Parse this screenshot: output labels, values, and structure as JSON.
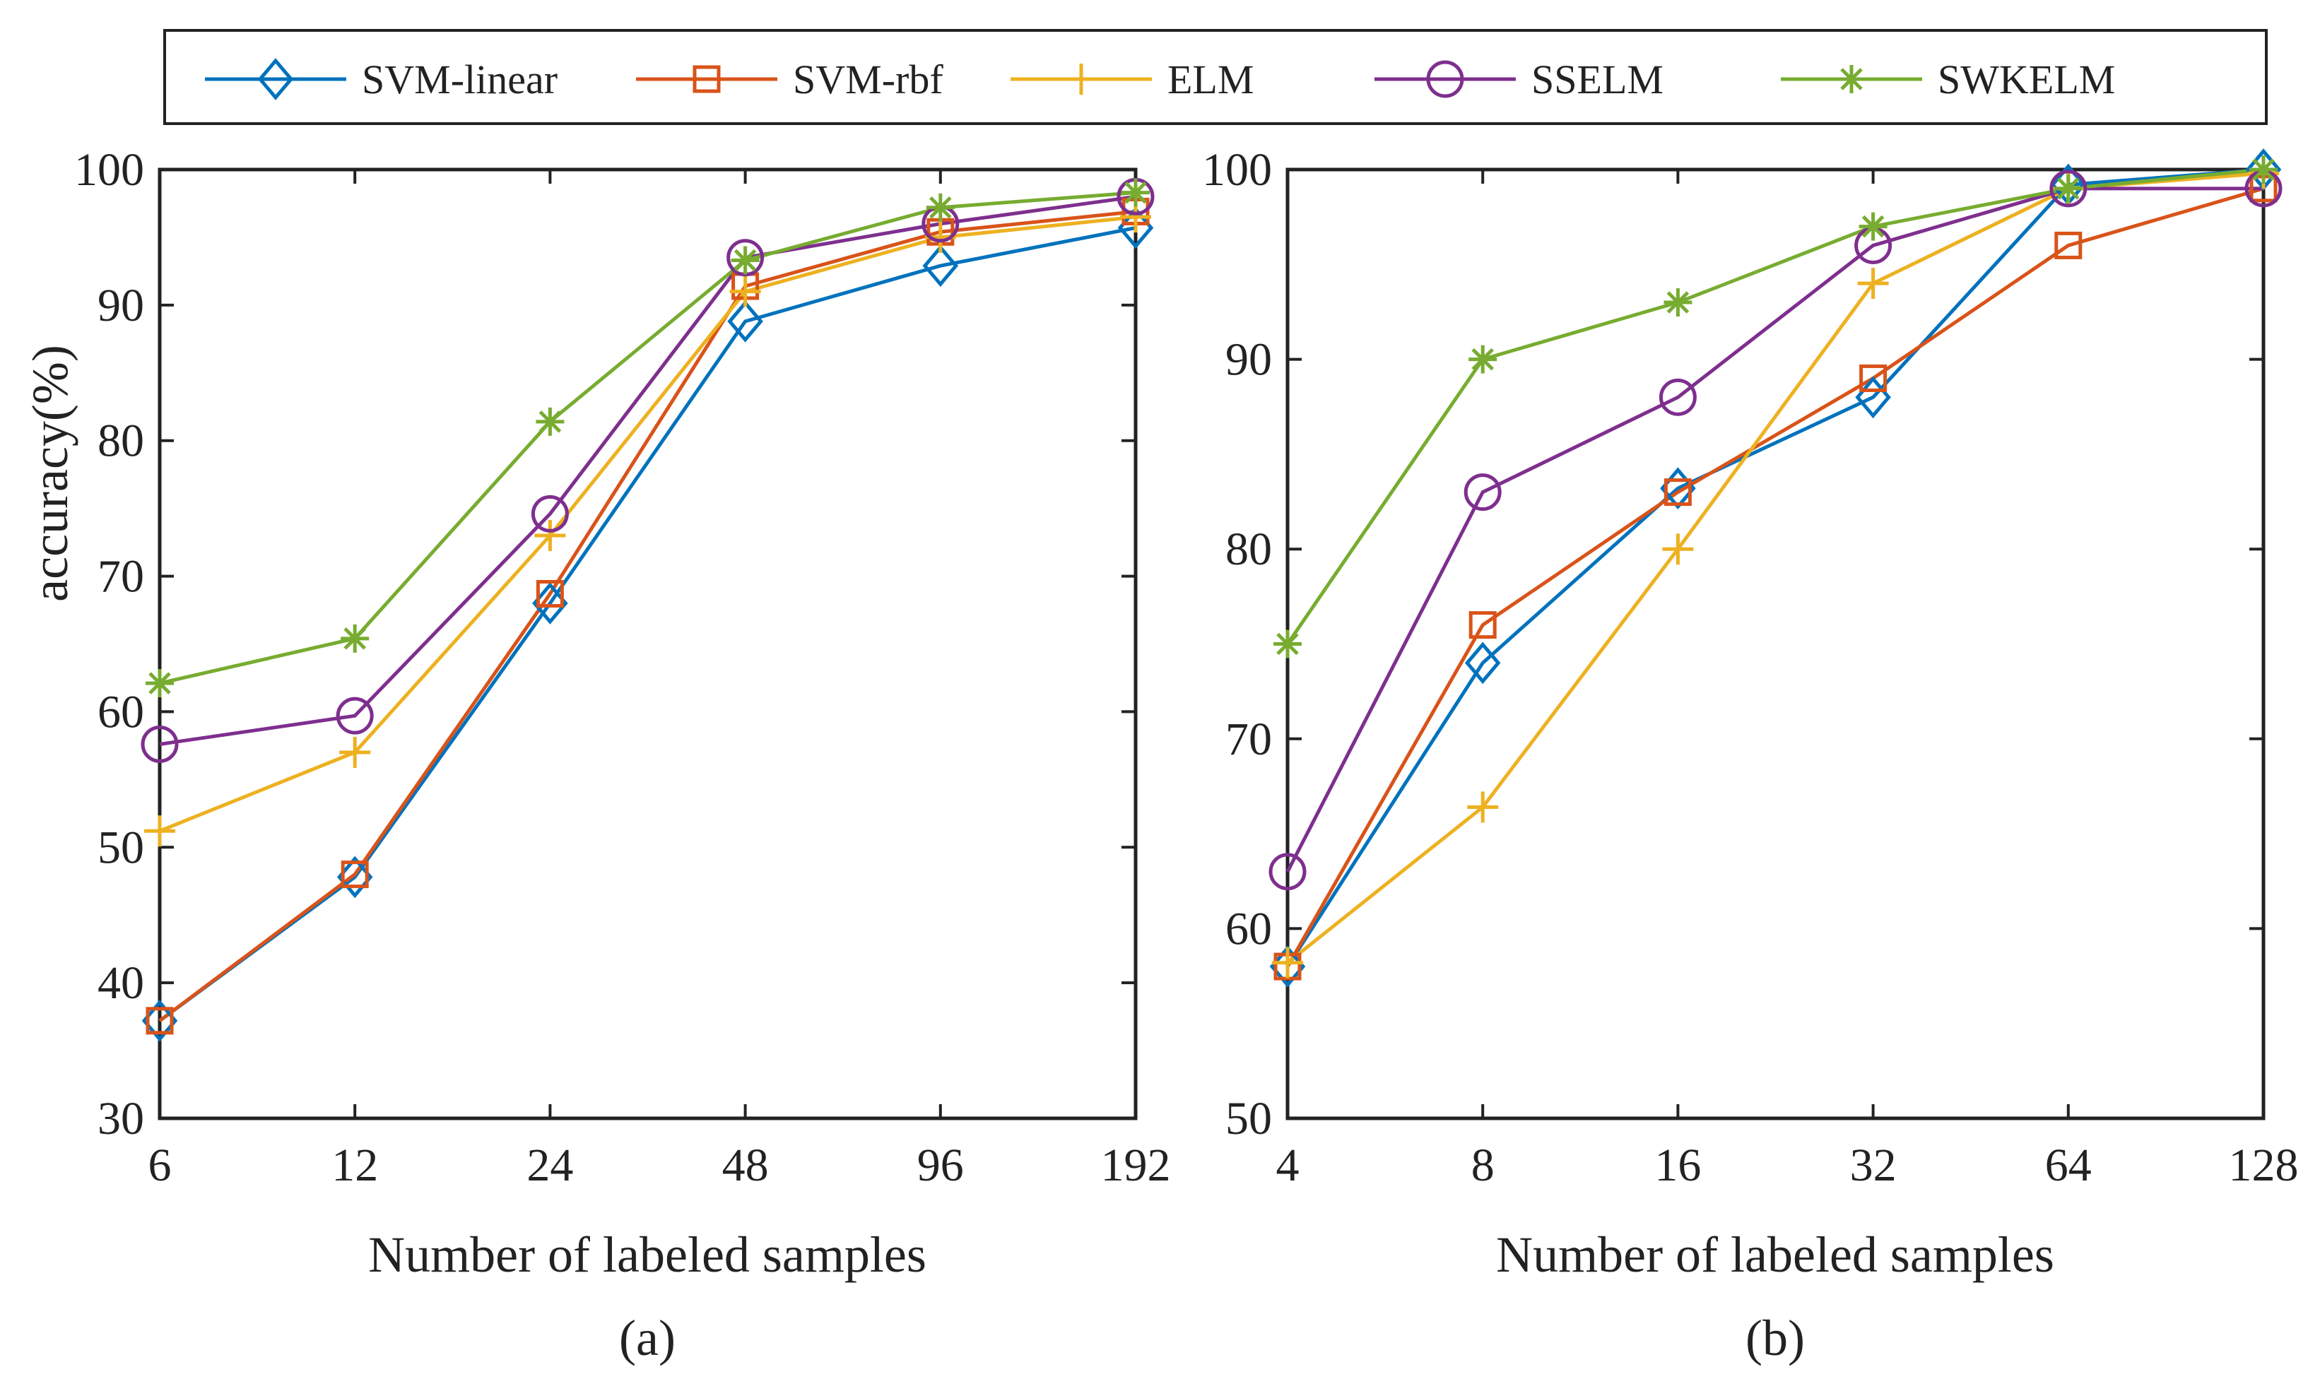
{
  "legend": [
    {
      "key": "svm_linear",
      "label": "SVM-linear",
      "color": "#0072BD",
      "marker": "diamond"
    },
    {
      "key": "svm_rbf",
      "label": "SVM-rbf",
      "color": "#D95319",
      "marker": "square"
    },
    {
      "key": "elm",
      "label": "ELM",
      "color": "#EDB120",
      "marker": "plus"
    },
    {
      "key": "sselm",
      "label": "SSELM",
      "color": "#7E2F8E",
      "marker": "circle"
    },
    {
      "key": "swkelm",
      "label": "SWKELM",
      "color": "#77AC30",
      "marker": "asterisk"
    }
  ],
  "chart_data": [
    {
      "type": "line",
      "panel_label": "(a)",
      "xlabel": "Number of labeled samples",
      "ylabel": "accuracy(%)",
      "categories": [
        "6",
        "12",
        "24",
        "48",
        "96",
        "192"
      ],
      "ylim": [
        30,
        100
      ],
      "yticks": [
        30,
        40,
        50,
        60,
        70,
        80,
        90,
        100
      ],
      "grid": false,
      "legend_position": "top (shared)",
      "series": [
        {
          "name": "SVM-linear",
          "values": [
            37.2,
            47.8,
            68.0,
            88.8,
            92.9,
            95.7
          ]
        },
        {
          "name": "SVM-rbf",
          "values": [
            37.2,
            48.0,
            68.7,
            91.4,
            95.4,
            96.9
          ]
        },
        {
          "name": "ELM",
          "values": [
            51.2,
            57.0,
            73.0,
            91.0,
            95.0,
            96.5
          ]
        },
        {
          "name": "SSELM",
          "values": [
            57.6,
            59.7,
            74.6,
            93.5,
            96.0,
            98.0
          ]
        },
        {
          "name": "SWKELM",
          "values": [
            62.1,
            65.4,
            81.4,
            93.3,
            97.2,
            98.3
          ]
        }
      ]
    },
    {
      "type": "line",
      "panel_label": "(b)",
      "xlabel": "Number of labeled samples",
      "ylabel": "",
      "categories": [
        "4",
        "8",
        "16",
        "32",
        "64",
        "128"
      ],
      "ylim": [
        50,
        100
      ],
      "yticks": [
        50,
        60,
        70,
        80,
        90,
        100
      ],
      "grid": false,
      "series": [
        {
          "name": "SVM-linear",
          "values": [
            58.0,
            74.0,
            83.2,
            88.0,
            99.2,
            100.0
          ]
        },
        {
          "name": "SVM-rbf",
          "values": [
            58.0,
            76.0,
            83.0,
            89.0,
            96.0,
            99.0
          ]
        },
        {
          "name": "ELM",
          "values": [
            58.2,
            66.4,
            80.0,
            94.0,
            99.0,
            99.8
          ]
        },
        {
          "name": "SSELM",
          "values": [
            63.0,
            83.0,
            88.0,
            96.0,
            99.0,
            99.0
          ]
        },
        {
          "name": "SWKELM",
          "values": [
            75.0,
            90.0,
            93.0,
            97.0,
            99.0,
            100.0
          ]
        }
      ]
    }
  ]
}
